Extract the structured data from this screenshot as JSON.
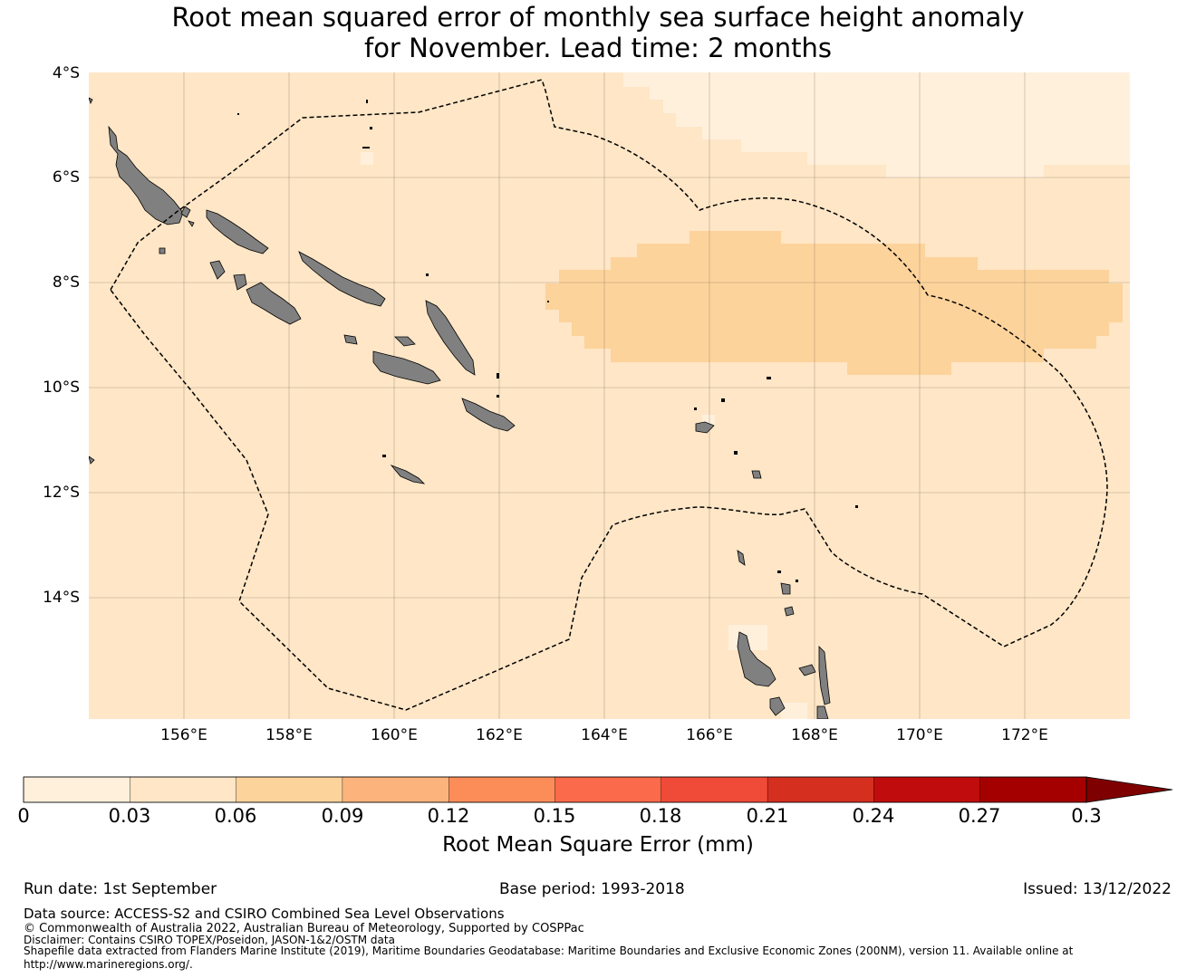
{
  "title": {
    "line1": "Root mean squared error of monthly sea surface height anomaly",
    "line2": "for November. Lead time: 2 months"
  },
  "map": {
    "lat_labels": [
      "4°S",
      "6°S",
      "8°S",
      "10°S",
      "12°S",
      "14°S"
    ],
    "lon_labels": [
      "156°E",
      "158°E",
      "160°E",
      "162°E",
      "164°E",
      "166°E",
      "168°E",
      "170°E",
      "172°E"
    ],
    "lon_range": [
      154.2,
      174.0
    ],
    "lat_range": [
      -4.0,
      -16.3
    ],
    "region_values": {
      "background_range": "0.03-0.06",
      "northeast_band_range": "0-0.03",
      "central_band_range": "0.06-0.09"
    },
    "land_color": "#808080",
    "boundary_style": "dashed"
  },
  "colorbar": {
    "ticks": [
      "0",
      "0.03",
      "0.06",
      "0.09",
      "0.12",
      "0.15",
      "0.18",
      "0.21",
      "0.24",
      "0.27",
      "0.3"
    ],
    "colors": [
      "#fff0dc",
      "#fee6c6",
      "#fdd39c",
      "#fdb47c",
      "#fc8d59",
      "#fb6a4a",
      "#f04a38",
      "#d52f20",
      "#c00c0c",
      "#a50000"
    ],
    "extend_color": "#7f0000",
    "label": "Root Mean Square Error (mm)"
  },
  "footer": {
    "run_date": "Run date: 1st September",
    "base_period": "Base period: 1993-2018",
    "issued": "Issued: 13/12/2022",
    "data_source": "Data source: ACCESS-S2 and CSIRO Combined Sea Level Observations",
    "copyright": "© Commonwealth of Australia 2022, Australian Bureau of Meteorology, Supported by COSPPac",
    "disclaimer": "Disclaimer: Contains CSIRO TOPEX/Poseidon, JASON-1&2/OSTM data",
    "shapefile_line1": "Shapefile data extracted from Flanders Marine Institute (2019), Maritime Boundaries Geodatabase: Maritime Boundaries and Exclusive Economic Zones (200NM), version 11. Available online at",
    "shapefile_line2": "http://www.marineregions.org/."
  }
}
